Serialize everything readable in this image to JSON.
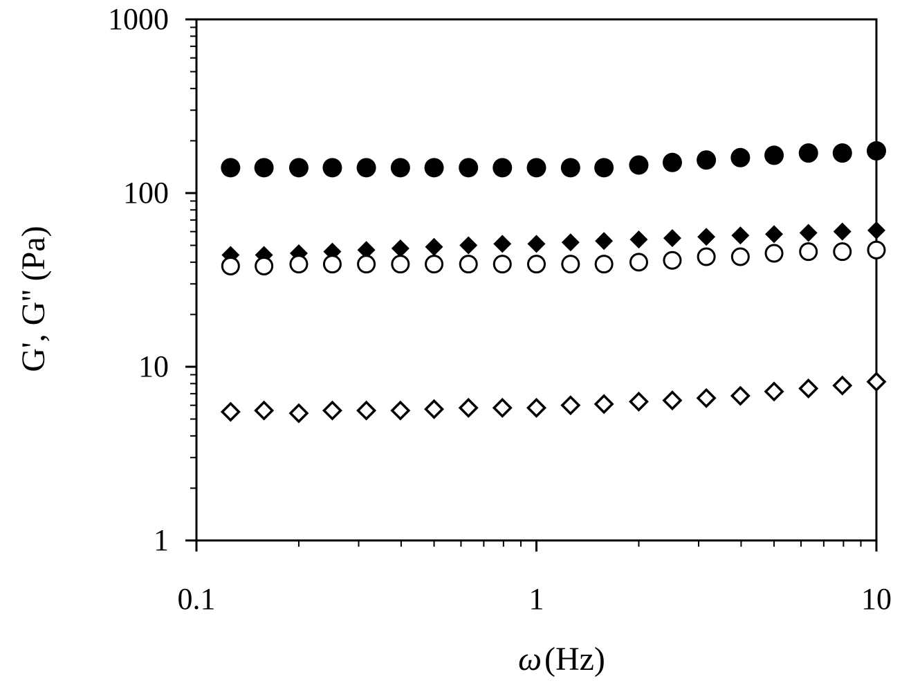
{
  "chart_data": {
    "type": "scatter",
    "title": "",
    "xlabel_symbol": "ω",
    "xlabel_unit": "(Hz)",
    "ylabel": "G', G'' (Pa)",
    "x_scale": "log",
    "y_scale": "log",
    "xlim": [
      0.1,
      10
    ],
    "ylim": [
      1,
      1000
    ],
    "x_ticks": [
      {
        "value": 0.1,
        "label": "0.1"
      },
      {
        "value": 1,
        "label": "1"
      },
      {
        "value": 10,
        "label": "10"
      }
    ],
    "y_ticks": [
      {
        "value": 1,
        "label": "1"
      },
      {
        "value": 10,
        "label": "10"
      },
      {
        "value": 100,
        "label": "100"
      },
      {
        "value": 1000,
        "label": "1000"
      }
    ],
    "grid": false,
    "legend": "none",
    "x": [
      0.126,
      0.158,
      0.2,
      0.251,
      0.316,
      0.398,
      0.5,
      0.631,
      0.794,
      1.0,
      1.26,
      1.58,
      2.0,
      2.51,
      3.16,
      3.98,
      5.0,
      6.31,
      7.94,
      10.0
    ],
    "series": [
      {
        "marker": "circle-filled",
        "values": [
          140,
          140,
          140,
          140,
          140,
          140,
          140,
          140,
          140,
          140,
          140,
          140,
          145,
          150,
          155,
          160,
          165,
          170,
          170,
          175
        ]
      },
      {
        "marker": "diamond-filled",
        "values": [
          44,
          44,
          45,
          46,
          47,
          48,
          49,
          50,
          51,
          51,
          52,
          53,
          54,
          55,
          56,
          57,
          58,
          59,
          60,
          61
        ]
      },
      {
        "marker": "circle-open",
        "values": [
          38,
          38,
          39,
          39,
          39,
          39,
          39,
          39,
          39,
          39,
          39,
          39,
          40,
          41,
          43,
          43,
          45,
          46,
          46,
          47
        ]
      },
      {
        "marker": "diamond-open",
        "values": [
          5.5,
          5.6,
          5.4,
          5.6,
          5.6,
          5.6,
          5.7,
          5.8,
          5.8,
          5.8,
          6.0,
          6.1,
          6.3,
          6.4,
          6.6,
          6.8,
          7.2,
          7.5,
          7.8,
          8.2
        ]
      }
    ]
  }
}
